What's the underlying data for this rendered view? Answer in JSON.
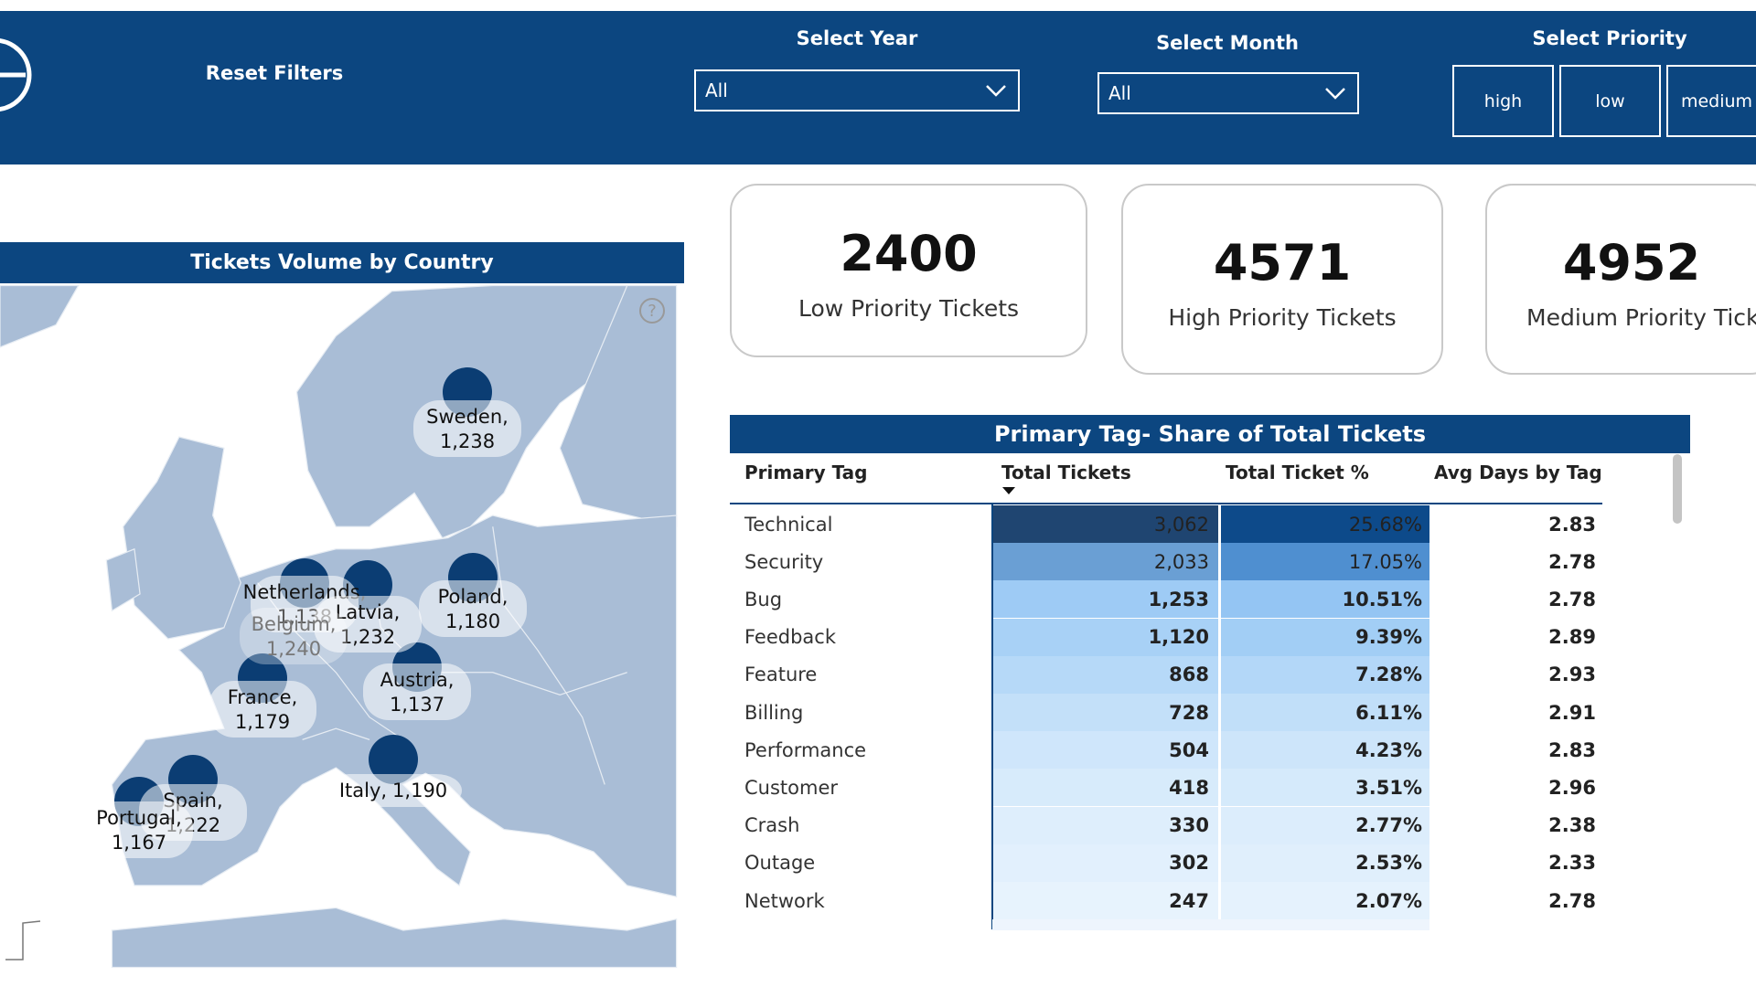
{
  "header": {
    "reset": "Reset Filters",
    "year_label": "Select Year",
    "year_value": "All",
    "month_label": "Select Month",
    "month_value": "All",
    "priority_label": "Select Priority",
    "priority_options": [
      "high",
      "low",
      "medium"
    ]
  },
  "kpis": [
    {
      "value": "2400",
      "label": "Low Priority Tickets"
    },
    {
      "value": "4571",
      "label": "High Priority Tickets"
    },
    {
      "value": "4952",
      "label": "Medium Priority Tickets"
    }
  ],
  "map": {
    "title": "Tickets Volume by Country",
    "help": "?",
    "countries": [
      {
        "name": "Sweden,",
        "value": "1,238"
      },
      {
        "name": "Netherlands,",
        "value": "1,138"
      },
      {
        "name": "Latvia,",
        "value": "1,232"
      },
      {
        "name": "Belgium,",
        "value": "1,240"
      },
      {
        "name": "Poland,",
        "value": "1,180"
      },
      {
        "name": "France,",
        "value": "1,179"
      },
      {
        "name": "Austria,",
        "value": "1,137"
      },
      {
        "name": "Italy,",
        "value": "1,190"
      },
      {
        "name": "Spain,",
        "value": "1,222"
      },
      {
        "name": "Portugal,",
        "value": "1,167"
      }
    ]
  },
  "table": {
    "title": "Primary Tag- Share of Total Tickets",
    "columns": [
      "Primary Tag",
      "Total Tickets",
      "Total Ticket %",
      "Avg Days by Tag"
    ],
    "rows": [
      [
        "Technical",
        "3,062",
        "25.68%",
        "2.83"
      ],
      [
        "Security",
        "2,033",
        "17.05%",
        "2.78"
      ],
      [
        "Bug",
        "1,253",
        "10.51%",
        "2.78"
      ],
      [
        "Feedback",
        "1,120",
        "9.39%",
        "2.89"
      ],
      [
        "Feature",
        "868",
        "7.28%",
        "2.93"
      ],
      [
        "Billing",
        "728",
        "6.11%",
        "2.91"
      ],
      [
        "Performance",
        "504",
        "4.23%",
        "2.83"
      ],
      [
        "Customer",
        "418",
        "3.51%",
        "2.96"
      ],
      [
        "Crash",
        "330",
        "2.77%",
        "2.38"
      ],
      [
        "Outage",
        "302",
        "2.53%",
        "2.33"
      ],
      [
        "Network",
        "247",
        "2.07%",
        "2.78"
      ]
    ]
  }
}
